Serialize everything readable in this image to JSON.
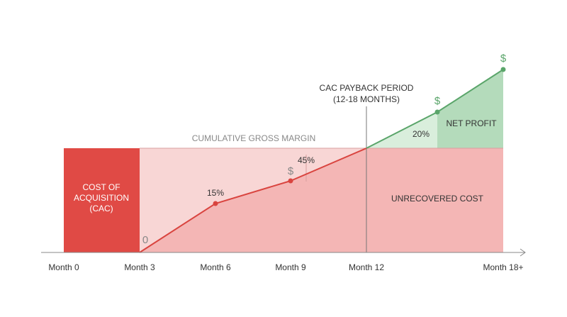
{
  "axis_labels": [
    "Month 0",
    "Month 3",
    "Month 6",
    "Month 9",
    "Month 12",
    "Month 18+"
  ],
  "payback": {
    "title": "CAC PAYBACK PERIOD",
    "subtitle": "(12-18 MONTHS)"
  },
  "margin_label": "CUMULATIVE GROSS MARGIN",
  "cac": [
    "COST OF",
    "ACQUISITION",
    "(CAC)"
  ],
  "markers": {
    "zero": "0",
    "month6": "15%",
    "month9_symbol": "$",
    "month9": "45%",
    "profit_pct": "20%",
    "profit_symbol_1": "$",
    "profit_symbol_2": "$"
  },
  "regions": {
    "net_profit": "NET PROFIT",
    "unrecovered": "UNRECOVERED COST"
  }
}
